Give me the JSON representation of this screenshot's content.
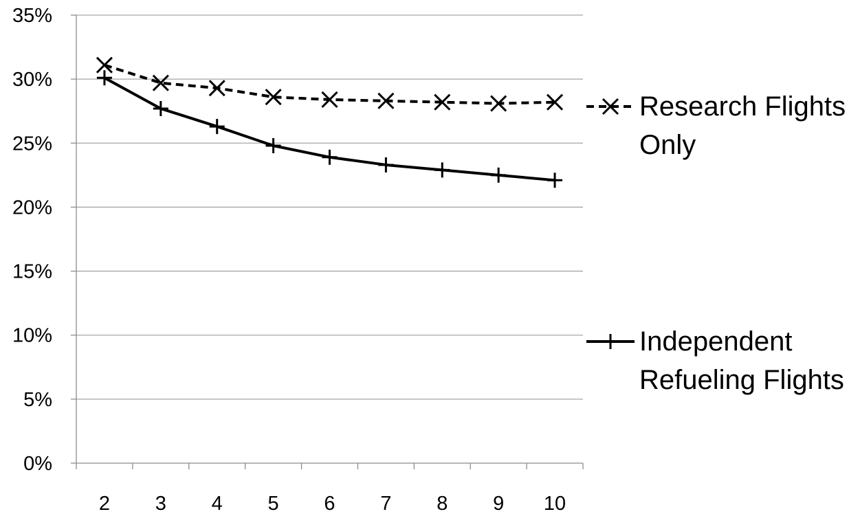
{
  "chart_data": {
    "type": "line",
    "title": "",
    "xlabel": "",
    "ylabel": "",
    "categories": [
      "2",
      "3",
      "4",
      "5",
      "6",
      "7",
      "8",
      "9",
      "10"
    ],
    "ylim": [
      0,
      0.35
    ],
    "yticks": [
      0,
      0.05,
      0.1,
      0.15,
      0.2,
      0.25,
      0.3,
      0.35
    ],
    "ytick_labels": [
      "0%",
      "5%",
      "10%",
      "15%",
      "20%",
      "25%",
      "30%",
      "35%"
    ],
    "grid": "horizontal",
    "legend_placement": "right",
    "series": [
      {
        "name": "Research Flights Only",
        "name_lines": [
          "Research Flights",
          "Only"
        ],
        "values": [
          0.311,
          0.297,
          0.293,
          0.286,
          0.284,
          0.283,
          0.282,
          0.281,
          0.282
        ],
        "line_style": "dashed",
        "marker": "x",
        "color": "#000000"
      },
      {
        "name": "Independent Refueling Flights",
        "name_lines": [
          "Independent",
          "Refueling Flights"
        ],
        "values": [
          0.301,
          0.277,
          0.263,
          0.248,
          0.239,
          0.233,
          0.229,
          0.225,
          0.221
        ],
        "line_style": "solid",
        "marker": "plus",
        "color": "#000000"
      }
    ]
  }
}
